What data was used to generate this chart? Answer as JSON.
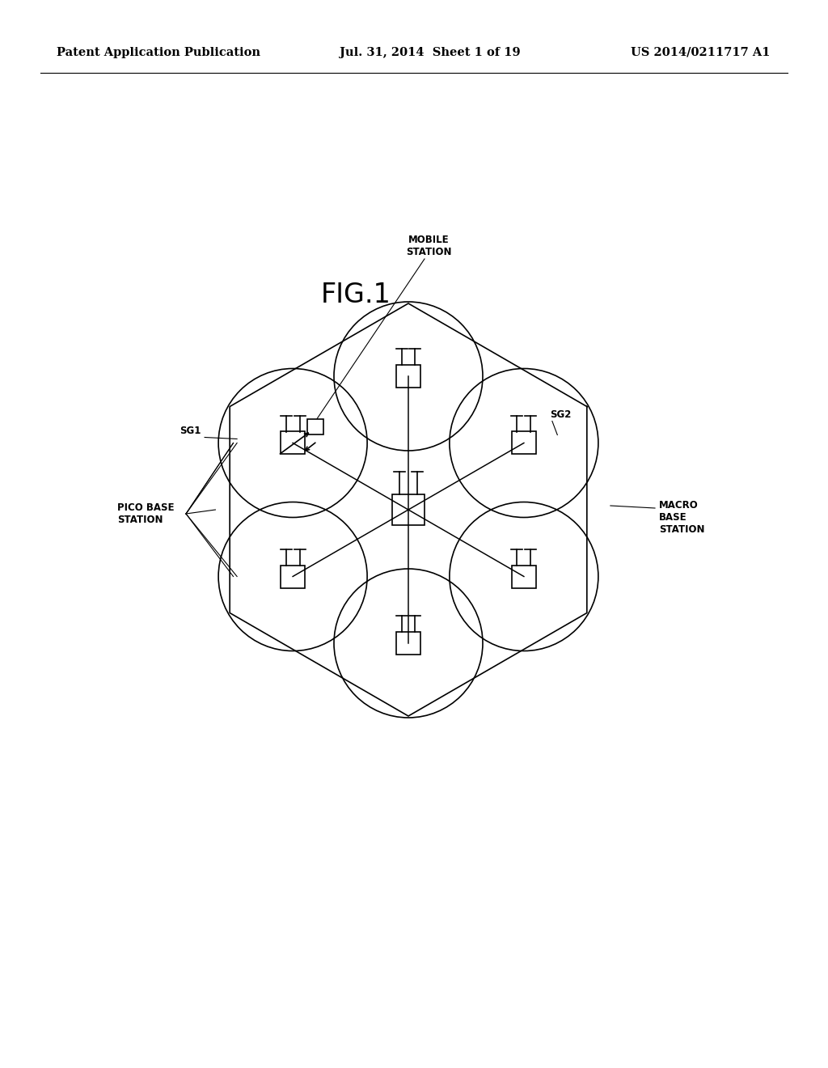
{
  "background_color": "#ffffff",
  "header_left": "Patent Application Publication",
  "header_mid": "Jul. 31, 2014  Sheet 1 of 19",
  "header_right": "US 2014/0211717 A1",
  "fig_title": "FIG.1",
  "label_mobile_station": "MOBILE\nSTATION",
  "label_sg1": "SG1",
  "label_sg2": "SG2",
  "label_macro": "MACRO\nBASE\nSTATION",
  "label_pico": "PICO BASE\nSTATION",
  "line_color": "#000000",
  "line_width": 1.2,
  "font_size_header": 10.5,
  "font_size_fig": 24,
  "font_size_label": 8.5
}
